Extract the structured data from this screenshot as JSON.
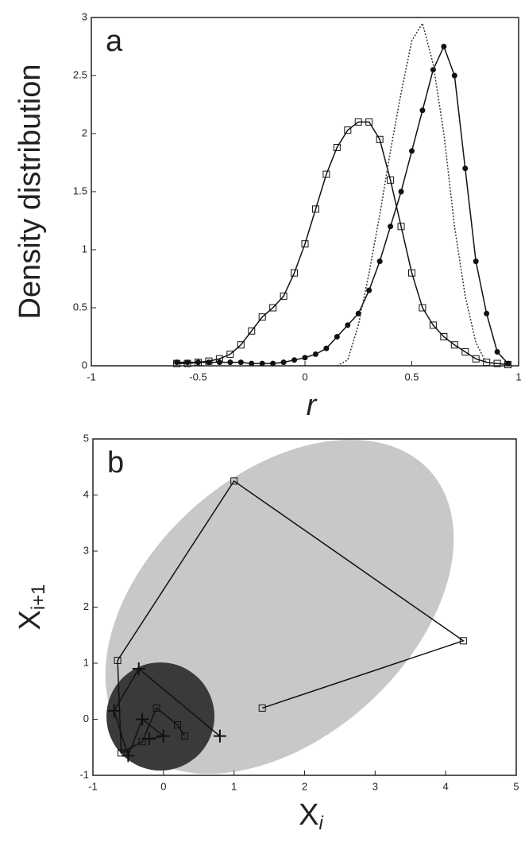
{
  "chart_data": [
    {
      "type": "line",
      "panel_label": "a",
      "y_label": "Density distribution",
      "x_label": "r",
      "x": [
        -0.6,
        -0.55,
        -0.5,
        -0.45,
        -0.4,
        -0.35,
        -0.3,
        -0.25,
        -0.2,
        -0.15,
        -0.1,
        -0.05,
        0,
        0.05,
        0.1,
        0.15,
        0.2,
        0.25,
        0.3,
        0.35,
        0.4,
        0.45,
        0.5,
        0.55,
        0.6,
        0.65,
        0.7,
        0.75,
        0.8,
        0.85,
        0.9,
        0.95
      ],
      "series": [
        {
          "color": "#111111",
          "marker": "square",
          "linestyle": "solid",
          "values": [
            0.02,
            0.02,
            0.03,
            0.04,
            0.06,
            0.1,
            0.18,
            0.3,
            0.42,
            0.5,
            0.6,
            0.8,
            1.05,
            1.35,
            1.65,
            1.88,
            2.03,
            2.1,
            2.1,
            1.95,
            1.6,
            1.2,
            0.8,
            0.5,
            0.35,
            0.25,
            0.18,
            0.12,
            0.06,
            0.03,
            0.02,
            0.01
          ]
        },
        {
          "color": "#111111",
          "marker": "circle",
          "linestyle": "solid",
          "values": [
            0.03,
            0.03,
            0.03,
            0.03,
            0.03,
            0.03,
            0.03,
            0.02,
            0.02,
            0.02,
            0.03,
            0.05,
            0.07,
            0.1,
            0.15,
            0.25,
            0.35,
            0.45,
            0.65,
            0.9,
            1.2,
            1.5,
            1.85,
            2.2,
            2.55,
            2.75,
            2.5,
            1.7,
            0.9,
            0.45,
            0.12,
            0.02
          ]
        },
        {
          "color": "#333333",
          "marker": "none",
          "linestyle": "dotted",
          "values": [
            null,
            null,
            null,
            null,
            null,
            null,
            null,
            null,
            null,
            null,
            null,
            null,
            null,
            null,
            null,
            0,
            0.05,
            0.35,
            0.8,
            1.3,
            1.85,
            2.35,
            2.8,
            2.95,
            2.6,
            2.0,
            1.2,
            0.6,
            0.2,
            0.02,
            null,
            null
          ]
        }
      ],
      "xlim": [
        -1,
        1
      ],
      "xticks": [
        -1,
        -0.5,
        0,
        0.5,
        1
      ],
      "ylim": [
        0,
        3
      ],
      "yticks": [
        0,
        0.5,
        1,
        1.5,
        2,
        2.5,
        3
      ]
    },
    {
      "type": "scatter",
      "panel_label": "b",
      "y_label": "X",
      "y_label_sub": "i+1",
      "x_label": "X",
      "x_label_sub": "i",
      "series": [
        {
          "color": "#111111",
          "marker": "square",
          "x": [
            1.4,
            4.25,
            1.0,
            -0.65,
            -0.6,
            -0.3,
            -0.1,
            0.2,
            0.3
          ],
          "values": [
            0.2,
            1.4,
            4.25,
            1.05,
            -0.6,
            -0.4,
            0.2,
            -0.1,
            -0.3
          ]
        },
        {
          "color": "#111111",
          "marker": "plus",
          "x": [
            0.8,
            -0.35,
            -0.7,
            -0.5,
            -0.3,
            0.0,
            -0.2
          ],
          "values": [
            -0.3,
            0.9,
            0.15,
            -0.65,
            0,
            -0.3,
            -0.35
          ]
        }
      ],
      "xlim": [
        -1,
        5
      ],
      "xticks": [
        -1,
        0,
        1,
        2,
        3,
        4,
        5
      ],
      "ylim": [
        -1,
        5
      ],
      "yticks": [
        -1,
        0,
        1,
        2,
        3,
        4,
        5
      ]
    }
  ]
}
